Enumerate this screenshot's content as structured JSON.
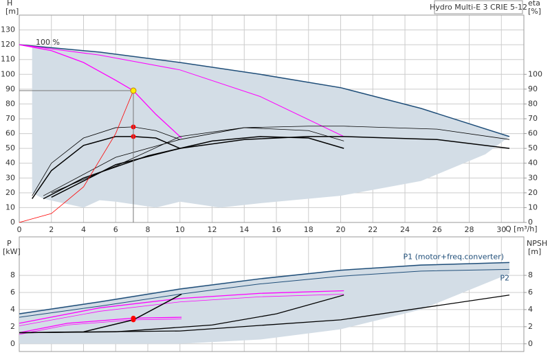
{
  "chart_data": [
    {
      "type": "line",
      "title": "Hydro Multi-E 3 CRIE 5-12",
      "y_label": "H",
      "y_unit": "[m]",
      "y2_label": "eta",
      "y2_unit": "[%]",
      "x_label": "Q [m³/h]",
      "annotation": "100 %",
      "xlim": [
        0,
        31.4
      ],
      "xticks": [
        0,
        2,
        4,
        6,
        8,
        10,
        12,
        14,
        16,
        18,
        20,
        22,
        24,
        26,
        28,
        30
      ],
      "ylim": [
        0,
        140
      ],
      "yticks": [
        0,
        10,
        20,
        30,
        40,
        50,
        60,
        70,
        80,
        90,
        100,
        110,
        120,
        130
      ],
      "y2lim": [
        0,
        140
      ],
      "y2ticks": [
        0,
        10,
        20,
        30,
        40,
        50,
        60,
        70,
        80,
        90,
        100
      ],
      "grid": true,
      "duty_point": {
        "x": 7.1,
        "y": 89,
        "color": "#ffee00"
      },
      "series": [
        {
          "kind": "area",
          "color": "#d3dde6",
          "x": [
            0.8,
            5,
            10,
            15,
            20,
            25,
            30.5,
            29,
            25,
            20,
            15,
            12.5,
            10,
            8.5,
            6,
            5,
            4,
            1.5,
            0.8
          ],
          "values": [
            119,
            115,
            108,
            100,
            91,
            77,
            58,
            46,
            28,
            18,
            13,
            10,
            14,
            10,
            14,
            15,
            10,
            16,
            20
          ]
        },
        {
          "kind": "line",
          "color": "#1f4e79",
          "width": 1.5,
          "x": [
            0,
            5,
            10,
            15,
            20,
            25,
            30.5
          ],
          "values": [
            120,
            115,
            108,
            100,
            91,
            77,
            58
          ]
        },
        {
          "kind": "line",
          "color": "#ff00ff",
          "width": 1.3,
          "x": [
            0,
            2,
            4,
            6,
            7.1,
            8.5,
            10.1
          ],
          "values": [
            120,
            116,
            108,
            96,
            89,
            73,
            57
          ]
        },
        {
          "kind": "line",
          "color": "#ff00ff",
          "width": 1,
          "x": [
            0,
            5,
            10,
            15,
            20.2
          ],
          "values": [
            120,
            113,
            103,
            85,
            58
          ]
        },
        {
          "kind": "line",
          "color": "#000000",
          "width": 1.5,
          "axis": "y2",
          "x": [
            0.8,
            2,
            4,
            6,
            7.1,
            8.5,
            10
          ],
          "values": [
            16,
            35,
            52,
            58,
            58,
            57,
            50
          ]
        },
        {
          "kind": "line",
          "color": "#000000",
          "width": 0.8,
          "axis": "y2",
          "x": [
            0.8,
            2,
            4,
            6,
            7.1,
            8.5,
            10
          ],
          "values": [
            18,
            40,
            57,
            64,
            64.5,
            62,
            56
          ]
        },
        {
          "kind": "line",
          "color": "#000000",
          "width": 1.5,
          "axis": "y2",
          "x": [
            1.5,
            4,
            8,
            12,
            15,
            18,
            20.2
          ],
          "values": [
            16,
            30,
            45,
            55,
            58,
            57,
            50
          ]
        },
        {
          "kind": "line",
          "color": "#000000",
          "width": 0.8,
          "axis": "y2",
          "x": [
            2,
            6,
            10,
            14,
            18,
            20.2
          ],
          "values": [
            20,
            38,
            58,
            64,
            62,
            55
          ]
        },
        {
          "kind": "line",
          "color": "#000000",
          "width": 1.5,
          "axis": "y2",
          "x": [
            2,
            6,
            10,
            14,
            18,
            20.2,
            26,
            30.5
          ],
          "values": [
            17,
            39,
            50,
            56,
            58,
            58,
            56,
            50
          ]
        },
        {
          "kind": "line",
          "color": "#000000",
          "width": 0.8,
          "axis": "y2",
          "x": [
            1.5,
            6,
            10,
            14,
            18,
            20.2,
            26,
            30.5
          ],
          "values": [
            18,
            44,
            56,
            64,
            65,
            65,
            63,
            56
          ]
        },
        {
          "kind": "line",
          "color": "#ff0000",
          "width": 0.8,
          "x": [
            0,
            2,
            4,
            6,
            7.1
          ],
          "values": [
            0,
            6,
            24,
            60,
            89
          ]
        },
        {
          "kind": "points",
          "color": "#ff0000",
          "axis": "y2",
          "x": [
            7.1,
            7.1
          ],
          "values": [
            64.5,
            58
          ]
        }
      ]
    },
    {
      "type": "line",
      "y_label": "P",
      "y_unit": "[kW]",
      "y2_label": "NPSH",
      "y2_unit": "[m]",
      "xlim": [
        0,
        31.4
      ],
      "xticks": [
        0,
        2,
        4,
        6,
        8,
        10,
        12,
        14,
        16,
        18,
        20,
        22,
        24,
        26,
        28,
        30
      ],
      "ylim": [
        -0.9,
        12.5
      ],
      "yticks": [
        0,
        2,
        4,
        6,
        8
      ],
      "y2lim": [
        -0.9,
        12.5
      ],
      "y2ticks": [
        0,
        2,
        4,
        6,
        8
      ],
      "grid": true,
      "series": [
        {
          "kind": "area",
          "color": "#d3dde6",
          "x": [
            0,
            5,
            10,
            15,
            20,
            25,
            30.5,
            30.5,
            25,
            20,
            15,
            10,
            0
          ],
          "values": [
            3.6,
            5,
            6.5,
            7.7,
            8.6,
            9.3,
            9.5,
            8.2,
            4,
            1.7,
            0.5,
            0,
            0
          ]
        },
        {
          "kind": "line",
          "name": "P1 (motor+freq.converter)",
          "color": "#1f4e79",
          "width": 1.5,
          "x": [
            0,
            5,
            10,
            15,
            20,
            25,
            30.5
          ],
          "values": [
            3.5,
            4.9,
            6.4,
            7.6,
            8.6,
            9.2,
            9.5
          ]
        },
        {
          "kind": "line",
          "name": "P2",
          "color": "#1f4e79",
          "width": 1,
          "x": [
            0,
            5,
            10,
            15,
            20,
            25,
            30.5
          ],
          "values": [
            3.1,
            4.4,
            5.8,
            7.0,
            7.9,
            8.5,
            8.7
          ]
        },
        {
          "kind": "line",
          "color": "#ff00ff",
          "width": 1.3,
          "x": [
            0,
            5,
            10,
            15,
            20.2
          ],
          "values": [
            2.4,
            4.2,
            5.3,
            5.9,
            6.2
          ]
        },
        {
          "kind": "line",
          "color": "#ff00ff",
          "width": 0.8,
          "x": [
            0,
            5,
            10,
            15,
            20.2
          ],
          "values": [
            2.1,
            3.8,
            4.9,
            5.5,
            5.8
          ]
        },
        {
          "kind": "line",
          "color": "#ff00ff",
          "width": 1.3,
          "x": [
            0,
            3,
            7.1,
            10.1
          ],
          "values": [
            1.3,
            2.4,
            3.0,
            3.1
          ]
        },
        {
          "kind": "line",
          "color": "#ff00ff",
          "width": 0.8,
          "x": [
            0,
            3,
            7.1,
            10.1
          ],
          "values": [
            1.1,
            2.2,
            2.8,
            2.9
          ]
        },
        {
          "kind": "line",
          "color": "#000000",
          "width": 1.5,
          "axis": "y2",
          "x": [
            0,
            4,
            7.1,
            10.1
          ],
          "values": [
            1.3,
            1.4,
            2.8,
            5.8
          ]
        },
        {
          "kind": "line",
          "color": "#000000",
          "width": 1.3,
          "axis": "y2",
          "x": [
            0,
            6,
            12,
            16,
            20.2
          ],
          "values": [
            1.3,
            1.4,
            2.2,
            3.5,
            5.7
          ]
        },
        {
          "kind": "line",
          "color": "#000000",
          "width": 1.3,
          "axis": "y2",
          "x": [
            0,
            10,
            20,
            30.5
          ],
          "values": [
            1.3,
            1.5,
            2.8,
            5.7
          ]
        },
        {
          "kind": "points",
          "color": "#ff0000",
          "x": [
            7.1,
            7.1
          ],
          "values": [
            3.0,
            2.8
          ]
        }
      ]
    }
  ]
}
